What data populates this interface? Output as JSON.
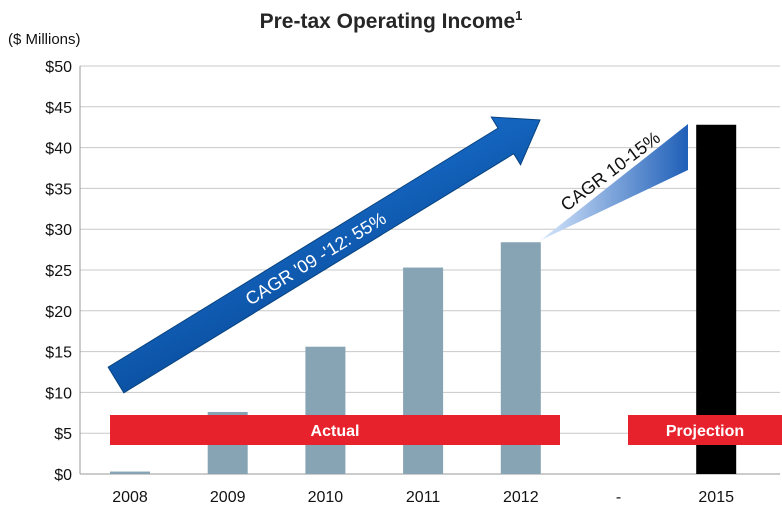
{
  "chart_data": {
    "type": "bar",
    "title": "Pre-tax Operating Income",
    "title_footnote": "1",
    "ylabel": "($ Millions)",
    "categories": [
      "2008",
      "2009",
      "2010",
      "2011",
      "2012",
      "-",
      "2015"
    ],
    "values": [
      0.3,
      7.6,
      15.6,
      25.3,
      28.4,
      null,
      42.8
    ],
    "ylim": [
      0,
      50
    ],
    "ytick_step": 5,
    "ytick_format": "$",
    "grid": true,
    "colors": {
      "actual": "#86a4b4",
      "projection": "#000000",
      "band": "#e8222d",
      "arrow": "#0d5fb0"
    },
    "bands": [
      {
        "label": "Actual",
        "from": "2008",
        "to": "2012"
      },
      {
        "label": "Projection",
        "from": "-",
        "to": "2015"
      }
    ],
    "annotations": [
      {
        "text": "CAGR '09 -'12: 55%",
        "kind": "arrow"
      },
      {
        "text": "CAGR 10-15%",
        "kind": "wedge"
      }
    ]
  }
}
